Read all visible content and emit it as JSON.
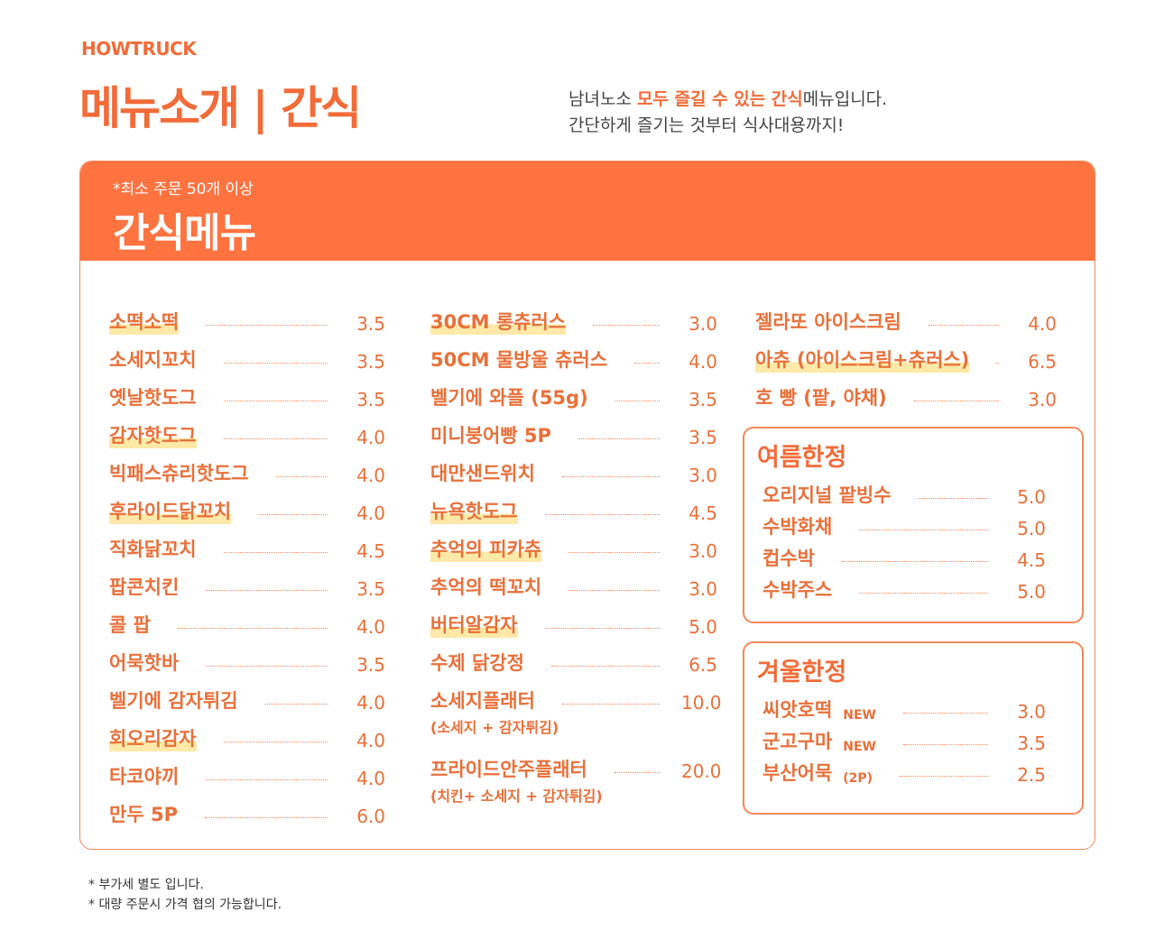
{
  "brand": "HOWTRUCK",
  "title": "메뉴소개 | 간식",
  "intro": {
    "l1a": "남녀노소 ",
    "l1b": "모두 즐길 수 있는 간식",
    "l1c": "메뉴입니다.",
    "l2": "간단하게 즐기는 것부터 식사대용까지!"
  },
  "card": {
    "note": "*최소 주문 50개 이상",
    "heading": "간식메뉴"
  },
  "col1": [
    {
      "name": "소떡소떡",
      "price": "3.5",
      "hl": true
    },
    {
      "name": "소세지꼬치",
      "price": "3.5"
    },
    {
      "name": "옛날핫도그",
      "price": "3.5"
    },
    {
      "name": "감자핫도그",
      "price": "4.0",
      "hl": true
    },
    {
      "name": "빅패스츄리핫도그",
      "price": "4.0"
    },
    {
      "name": "후라이드닭꼬치",
      "price": "4.0",
      "hl": true
    },
    {
      "name": "직화닭꼬치",
      "price": "4.5"
    },
    {
      "name": "팝콘치킨",
      "price": "3.5"
    },
    {
      "name": "콜 팝",
      "price": "4.0"
    },
    {
      "name": "어묵핫바",
      "price": "3.5"
    },
    {
      "name": "벨기에 감자튀김",
      "price": "4.0"
    },
    {
      "name": "회오리감자",
      "price": "4.0",
      "hl": true
    },
    {
      "name": "타코야끼",
      "price": "4.0"
    },
    {
      "name": "만두 5P",
      "price": "6.0"
    }
  ],
  "col2": [
    {
      "name": "30CM 롱츄러스",
      "price": "3.0",
      "hl": true
    },
    {
      "name": "50CM 물방울 츄러스",
      "price": "4.0"
    },
    {
      "name": "벨기에 와플 (55g)",
      "price": "3.5"
    },
    {
      "name": "미니붕어빵 5P",
      "price": "3.5"
    },
    {
      "name": "대만샌드위치",
      "price": "3.0"
    },
    {
      "name": "뉴욕핫도그",
      "price": "4.5",
      "hl": true
    },
    {
      "name": "추억의 피카츄",
      "price": "3.0",
      "hl": true
    },
    {
      "name": "추억의 떡꼬치",
      "price": "3.0"
    },
    {
      "name": "버터알감자",
      "price": "5.0",
      "hl": true
    },
    {
      "name": "수제 닭강정",
      "price": "6.5"
    },
    {
      "name": "소세지플래터",
      "price": "10.0",
      "sub": "(소세지 + 감자튀김)"
    },
    {
      "name": "프라이드안주플래터",
      "price": "20.0",
      "sub": "(치킨+ 소세지 + 감자튀김)"
    }
  ],
  "col3": [
    {
      "name": "젤라또 아이스크림",
      "price": "4.0"
    },
    {
      "name": "아츄 (아이스크림+츄러스)",
      "price": "6.5",
      "hl": true
    },
    {
      "name": "호 빵 (팥, 야채)",
      "price": "3.0"
    }
  ],
  "summer": {
    "title": "여름한정",
    "items": [
      {
        "name": "오리지널 팥빙수",
        "price": "5.0"
      },
      {
        "name": "수박화채",
        "price": "5.0"
      },
      {
        "name": "컵수박",
        "price": "4.5"
      },
      {
        "name": "수박주스",
        "price": "5.0"
      }
    ]
  },
  "winter": {
    "title": "겨울한정",
    "items": [
      {
        "name": "씨앗호떡",
        "tag": "NEW",
        "price": "3.0"
      },
      {
        "name": "군고구마",
        "tag": "NEW",
        "price": "3.5"
      },
      {
        "name": "부산어묵",
        "tag": "(2P)",
        "price": "2.5"
      }
    ]
  },
  "footnotes": [
    "*  부가세 별도 입니다.",
    "*  대량 주문시 가격 협의 가능합니다."
  ],
  "colors": {
    "accent": "#ff7340",
    "text": "#e8703a",
    "highlight": "#ffe9a8"
  }
}
